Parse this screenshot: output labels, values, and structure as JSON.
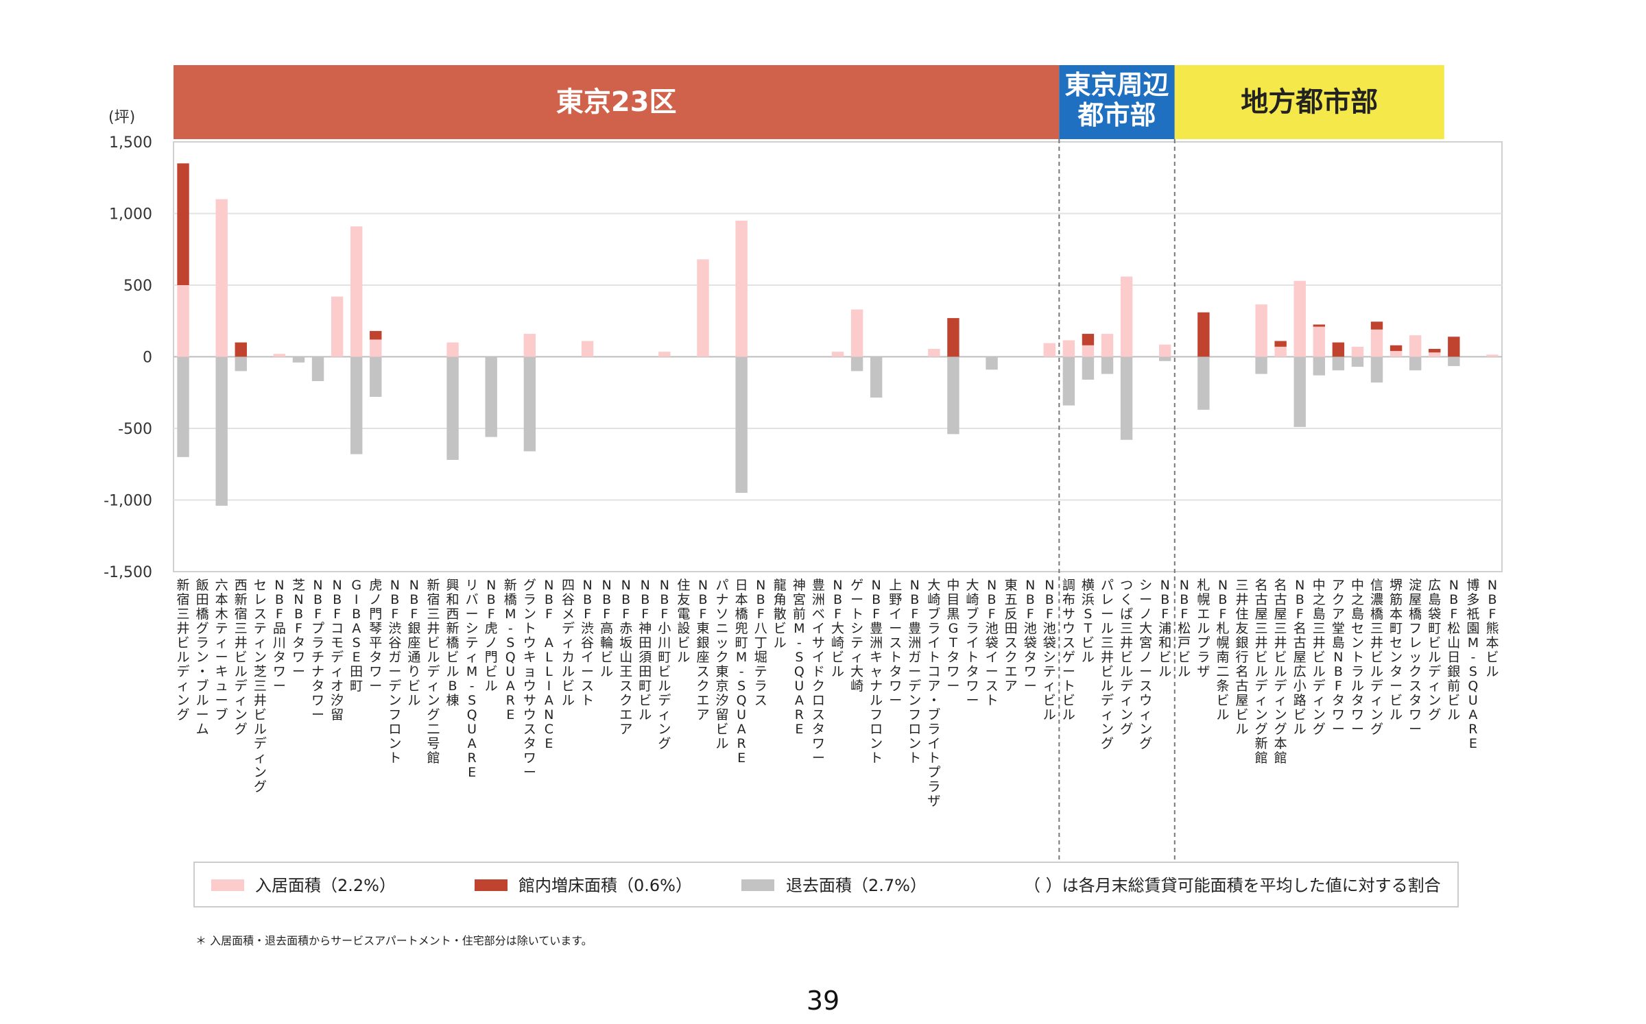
{
  "chart_data": {
    "type": "bar",
    "unit_label": "(坪)",
    "ylim": [
      -1500,
      1500
    ],
    "yticks": [
      "1,500",
      "1,000",
      "500",
      "0",
      "-500",
      "-1,000",
      "-1,500"
    ],
    "regions": [
      {
        "name": "東京23区",
        "color": "#d0614a",
        "text_color": "#ffffff",
        "start": 0,
        "end": 46
      },
      {
        "name": "東京周辺\n都市部",
        "color": "#1f70c1",
        "text_color": "#ffffff",
        "start": 46,
        "end": 52
      },
      {
        "name": "地方都市部",
        "color": "#f5e84a",
        "text_color": "#222222",
        "start": 52,
        "end": 66
      }
    ],
    "categories": [
      "新宿三井ビルディング",
      "飯田橋グラン・ブルーム",
      "六本木ティーキューブ",
      "西新宿三井ビルディング",
      "セレスティン芝三井ビルディング",
      "NBF品川タワー",
      "芝NBFタワー",
      "NBFプラチナタワー",
      "NBFコモディオ汐留",
      "GIBASE田町",
      "虎ノ門琴平タワー",
      "NBF渋谷ガーデンフロント",
      "NBF銀座通りビル",
      "新宿三井ビルディング二号館",
      "興和西新橋ビルB棟",
      "リバーシティM-SQUARE",
      "NBF虎ノ門ビル",
      "新橋M-SQUARE",
      "グラントウキョウサウスタワー",
      "NBF ALLIANCE",
      "四谷メディカルビル",
      "NBF渋谷イースト",
      "NBF高輪ビル",
      "NBF赤坂山王スクエア",
      "NBF神田須田町ビル",
      "NBF小川町ビルディング",
      "住友電設ビル",
      "NBF東銀座スクエア",
      "パナソニック東京汐留ビル",
      "日本橋兜町M-SQUARE",
      "NBF八丁堀テラス",
      "龍角散ビル",
      "神宮前M-SQUARE",
      "豊洲ベイサイドクロスタワー",
      "NBF大崎ビル",
      "ゲートシティ大崎",
      "NBF豊洲キャナルフロント",
      "上野イーストタワー",
      "NBF豊洲ガーデンフロント",
      "大崎ブライトコア・ブライトプラザ",
      "中目黒GTタワー",
      "大崎ブライトタワー",
      "NBF池袋イースト",
      "東五反田スクエア",
      "NBF池袋タワー",
      "NBF池袋シティビル",
      "調布サウスゲートビル",
      "横浜STビル",
      "パレール三井ビルディング",
      "つくば三井ビルディング",
      "シーノ大宮ノースウィング",
      "NBF浦和ビル",
      "NBF松戸ビル",
      "札幌エルプラザ",
      "NBF札幌南二条ビル",
      "三井住友銀行名古屋ビル",
      "名古屋三井ビルディング新館",
      "名古屋三井ビルディング本館",
      "NBF名古屋広小路ビル",
      "中之島三井ビルディング",
      "アクア堂島NBFタワー",
      "中之島セントラルタワー",
      "信濃橋三井ビルディング",
      "堺筋本町センタービル",
      "淀屋橋フレックスタワー",
      "広島袋町ビルディング",
      "NBF松山日銀前ビル",
      "博多祇園M-SQUARE",
      "NBF熊本ビル"
    ],
    "series": [
      {
        "name": "入居面積（2.2%）",
        "color": "#fccbcb",
        "values": [
          500,
          0,
          1100,
          0,
          0,
          20,
          0,
          0,
          420,
          910,
          120,
          0,
          0,
          0,
          100,
          0,
          0,
          0,
          160,
          0,
          0,
          110,
          0,
          0,
          0,
          35,
          0,
          680,
          0,
          950,
          0,
          0,
          0,
          0,
          35,
          330,
          0,
          0,
          0,
          55,
          0,
          0,
          0,
          0,
          0,
          95,
          115,
          80,
          160,
          560,
          0,
          85,
          0,
          0,
          0,
          0,
          365,
          70,
          530,
          210,
          0,
          70,
          190,
          40,
          150,
          30,
          0,
          0,
          15
        ]
      },
      {
        "name": "館内増床面積（0.6%）",
        "color": "#c0432f",
        "values": [
          850,
          0,
          0,
          100,
          0,
          0,
          0,
          0,
          0,
          0,
          60,
          0,
          0,
          0,
          0,
          0,
          0,
          0,
          0,
          0,
          0,
          0,
          0,
          0,
          0,
          0,
          0,
          0,
          0,
          0,
          0,
          0,
          0,
          0,
          0,
          0,
          0,
          0,
          0,
          0,
          270,
          0,
          0,
          0,
          0,
          0,
          0,
          80,
          0,
          0,
          0,
          0,
          0,
          310,
          0,
          0,
          0,
          40,
          0,
          15,
          100,
          0,
          55,
          40,
          0,
          25,
          140,
          0,
          0
        ]
      },
      {
        "name": "退去面積（2.7%）",
        "color": "#c3c3c3",
        "values": [
          -700,
          0,
          -1040,
          -100,
          0,
          0,
          -40,
          -170,
          0,
          -680,
          -280,
          0,
          0,
          0,
          -720,
          0,
          -560,
          0,
          -660,
          0,
          0,
          0,
          0,
          0,
          0,
          0,
          0,
          0,
          0,
          -950,
          0,
          0,
          0,
          0,
          0,
          -100,
          -285,
          0,
          0,
          0,
          -540,
          0,
          -90,
          0,
          0,
          0,
          -340,
          -160,
          -120,
          -580,
          0,
          -30,
          0,
          -370,
          0,
          0,
          -120,
          0,
          -490,
          -130,
          -95,
          -70,
          -180,
          0,
          -95,
          0,
          -65,
          0,
          0
        ]
      }
    ],
    "legend_note": "（ ）は各月末総賃貸可能面積を平均した値に対する割合",
    "grid": true
  },
  "footnote": "＊ 入居面積・退去面積からサービスアパートメント・住宅部分は除いています。",
  "page_number": "39"
}
